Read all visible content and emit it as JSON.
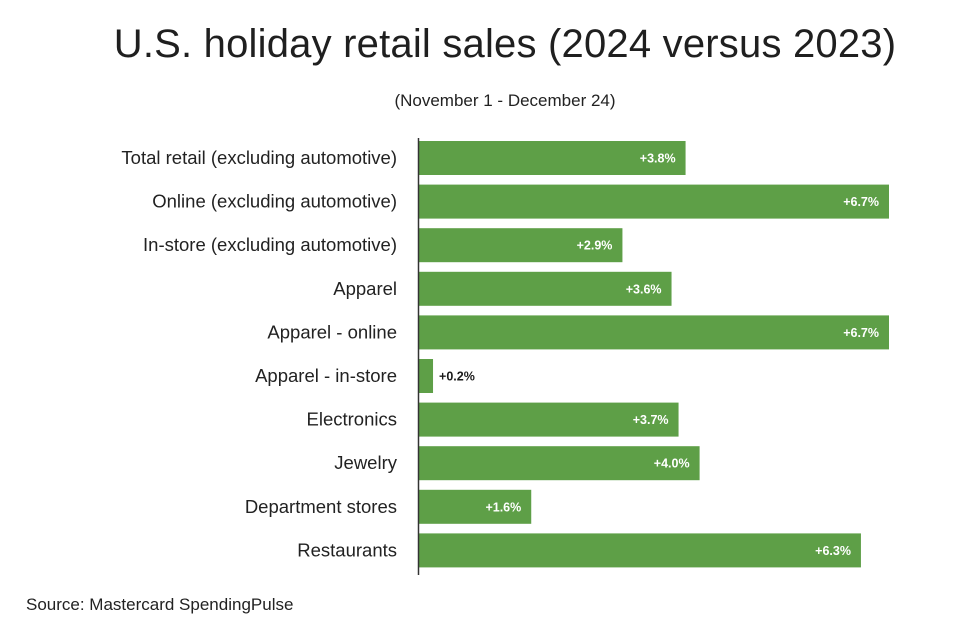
{
  "title": "U.S. holiday retail sales (2024 versus 2023)",
  "subtitle": "(November 1 - December 24)",
  "source": "Source: Mastercard SpendingPulse",
  "colors": {
    "bar": "#5e9f47",
    "label_inside": "#ffffff",
    "label_outside": "#1a1a1a",
    "axis": "#333333"
  },
  "chart_data": {
    "type": "bar",
    "orientation": "horizontal",
    "categories": [
      "Total retail (excluding automotive)",
      "Online (excluding automotive)",
      "In-store (excluding automotive)",
      "Apparel",
      "Apparel - online",
      "Apparel - in-store",
      "Electronics",
      "Jewelry",
      "Department stores",
      "Restaurants"
    ],
    "values": [
      3.8,
      6.7,
      2.9,
      3.6,
      6.7,
      0.2,
      3.7,
      4.0,
      1.6,
      6.3
    ],
    "data_labels": [
      "+3.8%",
      "+6.7%",
      "+2.9%",
      "+3.6%",
      "+6.7%",
      "+0.2%",
      "+3.7%",
      "+4.0%",
      "+1.6%",
      "+6.3%"
    ],
    "unit": "%",
    "xlim": [
      0,
      6.7
    ],
    "grid": false,
    "legend": "none"
  }
}
